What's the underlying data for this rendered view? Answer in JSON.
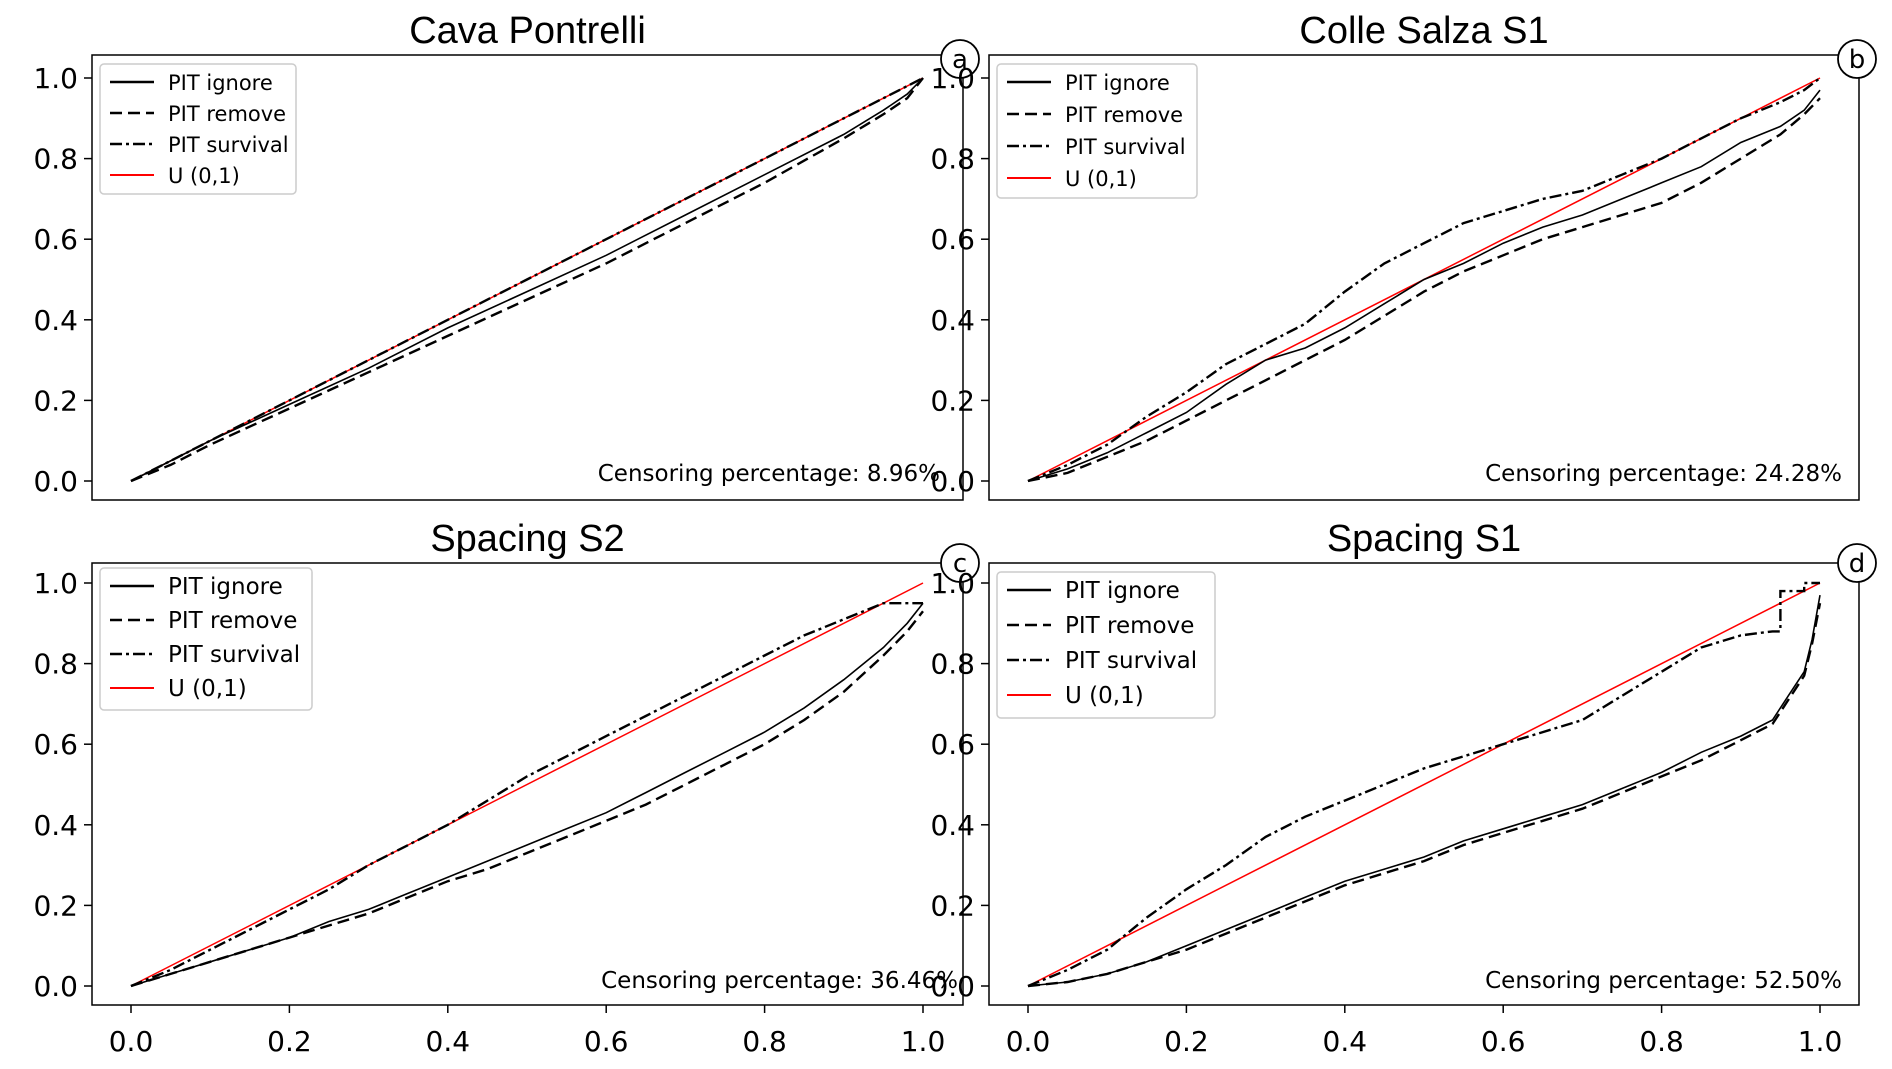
{
  "chart_data": [
    {
      "type": "line",
      "panel": "a",
      "title": "Cava Pontrelli",
      "annotation": "Censoring percentage: 8.96%",
      "xlim": [
        0,
        1
      ],
      "ylim": [
        0,
        1
      ],
      "xticks": [
        "0.0",
        "0.2",
        "0.4",
        "0.6",
        "0.8",
        "1.0"
      ],
      "yticks": [
        "0.0",
        "0.2",
        "0.4",
        "0.6",
        "0.8",
        "1.0"
      ],
      "legend_position": "top-left",
      "series": [
        {
          "name": "PIT ignore",
          "style": "solid",
          "color": "#000000",
          "x": [
            0,
            0.05,
            0.1,
            0.2,
            0.3,
            0.4,
            0.5,
            0.6,
            0.7,
            0.8,
            0.9,
            0.95,
            0.98,
            1.0
          ],
          "y": [
            0,
            0.05,
            0.1,
            0.19,
            0.28,
            0.38,
            0.47,
            0.56,
            0.66,
            0.76,
            0.86,
            0.92,
            0.96,
            1.0
          ]
        },
        {
          "name": "PIT remove",
          "style": "dashed",
          "color": "#000000",
          "x": [
            0,
            0.05,
            0.1,
            0.2,
            0.3,
            0.4,
            0.5,
            0.6,
            0.7,
            0.8,
            0.9,
            0.95,
            0.98,
            1.0
          ],
          "y": [
            0,
            0.04,
            0.09,
            0.18,
            0.27,
            0.36,
            0.45,
            0.54,
            0.64,
            0.74,
            0.85,
            0.91,
            0.95,
            1.0
          ]
        },
        {
          "name": "PIT survival",
          "style": "dashdot",
          "color": "#000000",
          "x": [
            0,
            0.05,
            0.1,
            0.2,
            0.3,
            0.4,
            0.5,
            0.6,
            0.7,
            0.8,
            0.9,
            0.95,
            1.0
          ],
          "y": [
            0,
            0.05,
            0.1,
            0.2,
            0.3,
            0.4,
            0.5,
            0.6,
            0.7,
            0.8,
            0.9,
            0.95,
            1.0
          ]
        },
        {
          "name": "U (0,1)",
          "style": "solid",
          "color": "#ff0000",
          "x": [
            0,
            1
          ],
          "y": [
            0,
            1
          ]
        }
      ]
    },
    {
      "type": "line",
      "panel": "b",
      "title": "Colle Salza S1",
      "annotation": "Censoring percentage: 24.28%",
      "xlim": [
        0,
        1
      ],
      "ylim": [
        0,
        1
      ],
      "xticks": [
        "0.0",
        "0.2",
        "0.4",
        "0.6",
        "0.8",
        "1.0"
      ],
      "yticks": [
        "0.0",
        "0.2",
        "0.4",
        "0.6",
        "0.8",
        "1.0"
      ],
      "legend_position": "top-left",
      "series": [
        {
          "name": "PIT ignore",
          "style": "solid",
          "color": "#000000",
          "x": [
            0,
            0.05,
            0.1,
            0.15,
            0.2,
            0.25,
            0.3,
            0.35,
            0.4,
            0.45,
            0.5,
            0.55,
            0.6,
            0.65,
            0.7,
            0.75,
            0.8,
            0.85,
            0.9,
            0.95,
            0.98,
            1.0
          ],
          "y": [
            0,
            0.03,
            0.07,
            0.12,
            0.17,
            0.24,
            0.3,
            0.33,
            0.38,
            0.44,
            0.5,
            0.54,
            0.59,
            0.63,
            0.66,
            0.7,
            0.74,
            0.78,
            0.84,
            0.88,
            0.92,
            0.97
          ]
        },
        {
          "name": "PIT remove",
          "style": "dashed",
          "color": "#000000",
          "x": [
            0,
            0.05,
            0.1,
            0.15,
            0.2,
            0.25,
            0.3,
            0.35,
            0.4,
            0.45,
            0.5,
            0.55,
            0.6,
            0.65,
            0.7,
            0.75,
            0.8,
            0.85,
            0.9,
            0.95,
            0.98,
            1.0
          ],
          "y": [
            0,
            0.02,
            0.06,
            0.1,
            0.15,
            0.2,
            0.25,
            0.3,
            0.35,
            0.41,
            0.47,
            0.52,
            0.56,
            0.6,
            0.63,
            0.66,
            0.69,
            0.74,
            0.8,
            0.86,
            0.91,
            0.95
          ]
        },
        {
          "name": "PIT survival",
          "style": "dashdot",
          "color": "#000000",
          "x": [
            0,
            0.05,
            0.1,
            0.15,
            0.2,
            0.25,
            0.3,
            0.35,
            0.4,
            0.45,
            0.5,
            0.55,
            0.6,
            0.65,
            0.7,
            0.75,
            0.8,
            0.85,
            0.9,
            0.95,
            0.98,
            1.0
          ],
          "y": [
            0,
            0.04,
            0.09,
            0.16,
            0.22,
            0.29,
            0.34,
            0.39,
            0.47,
            0.54,
            0.59,
            0.64,
            0.67,
            0.7,
            0.72,
            0.76,
            0.8,
            0.85,
            0.9,
            0.94,
            0.97,
            1.0
          ]
        },
        {
          "name": "U (0,1)",
          "style": "solid",
          "color": "#ff0000",
          "x": [
            0,
            1
          ],
          "y": [
            0,
            1
          ]
        }
      ]
    },
    {
      "type": "line",
      "panel": "c",
      "title": "Spacing S2",
      "annotation": "Censoring percentage: 36.46%",
      "xlim": [
        0,
        1
      ],
      "ylim": [
        0,
        1
      ],
      "xticks": [
        "0.0",
        "0.2",
        "0.4",
        "0.6",
        "0.8",
        "1.0"
      ],
      "yticks": [
        "0.0",
        "0.2",
        "0.4",
        "0.6",
        "0.8",
        "1.0"
      ],
      "legend_position": "top-left",
      "series": [
        {
          "name": "PIT ignore",
          "style": "solid",
          "color": "#000000",
          "x": [
            0,
            0.05,
            0.1,
            0.15,
            0.2,
            0.25,
            0.3,
            0.35,
            0.4,
            0.45,
            0.5,
            0.55,
            0.6,
            0.65,
            0.7,
            0.75,
            0.8,
            0.85,
            0.9,
            0.95,
            0.98,
            1.0
          ],
          "y": [
            0,
            0.03,
            0.06,
            0.09,
            0.12,
            0.16,
            0.19,
            0.23,
            0.27,
            0.31,
            0.35,
            0.39,
            0.43,
            0.48,
            0.53,
            0.58,
            0.63,
            0.69,
            0.76,
            0.84,
            0.9,
            0.95
          ]
        },
        {
          "name": "PIT remove",
          "style": "dashed",
          "color": "#000000",
          "x": [
            0,
            0.05,
            0.1,
            0.15,
            0.2,
            0.25,
            0.3,
            0.35,
            0.4,
            0.45,
            0.5,
            0.55,
            0.6,
            0.65,
            0.7,
            0.75,
            0.8,
            0.85,
            0.9,
            0.95,
            0.98,
            1.0
          ],
          "y": [
            0,
            0.03,
            0.06,
            0.09,
            0.12,
            0.15,
            0.18,
            0.22,
            0.26,
            0.29,
            0.33,
            0.37,
            0.41,
            0.45,
            0.5,
            0.55,
            0.6,
            0.66,
            0.73,
            0.82,
            0.88,
            0.93
          ]
        },
        {
          "name": "PIT survival",
          "style": "dashdot",
          "color": "#000000",
          "x": [
            0,
            0.05,
            0.1,
            0.15,
            0.2,
            0.25,
            0.3,
            0.35,
            0.4,
            0.45,
            0.5,
            0.55,
            0.6,
            0.65,
            0.7,
            0.75,
            0.8,
            0.85,
            0.9,
            0.95,
            1.0
          ],
          "y": [
            0,
            0.04,
            0.09,
            0.14,
            0.19,
            0.24,
            0.3,
            0.35,
            0.4,
            0.46,
            0.52,
            0.57,
            0.62,
            0.67,
            0.72,
            0.77,
            0.82,
            0.87,
            0.91,
            0.95,
            0.95
          ]
        },
        {
          "name": "U (0,1)",
          "style": "solid",
          "color": "#ff0000",
          "x": [
            0,
            1
          ],
          "y": [
            0,
            1
          ]
        }
      ]
    },
    {
      "type": "line",
      "panel": "d",
      "title": "Spacing S1",
      "annotation": "Censoring percentage: 52.50%",
      "xlim": [
        0,
        1
      ],
      "ylim": [
        0,
        1
      ],
      "xticks": [
        "0.0",
        "0.2",
        "0.4",
        "0.6",
        "0.8",
        "1.0"
      ],
      "yticks": [
        "0.0",
        "0.2",
        "0.4",
        "0.6",
        "0.8",
        "1.0"
      ],
      "legend_position": "top-left",
      "series": [
        {
          "name": "PIT ignore",
          "style": "solid",
          "color": "#000000",
          "x": [
            0,
            0.05,
            0.1,
            0.15,
            0.2,
            0.25,
            0.3,
            0.35,
            0.4,
            0.45,
            0.5,
            0.55,
            0.6,
            0.65,
            0.7,
            0.75,
            0.8,
            0.85,
            0.9,
            0.94,
            0.96,
            0.98,
            0.99,
            1.0
          ],
          "y": [
            0,
            0.01,
            0.03,
            0.06,
            0.1,
            0.14,
            0.18,
            0.22,
            0.26,
            0.29,
            0.32,
            0.36,
            0.39,
            0.42,
            0.45,
            0.49,
            0.53,
            0.58,
            0.62,
            0.66,
            0.72,
            0.78,
            0.86,
            0.97
          ]
        },
        {
          "name": "PIT remove",
          "style": "dashed",
          "color": "#000000",
          "x": [
            0,
            0.05,
            0.1,
            0.15,
            0.2,
            0.25,
            0.3,
            0.35,
            0.4,
            0.45,
            0.5,
            0.55,
            0.6,
            0.65,
            0.7,
            0.75,
            0.8,
            0.85,
            0.9,
            0.94,
            0.96,
            0.98,
            0.99,
            1.0
          ],
          "y": [
            0,
            0.01,
            0.03,
            0.06,
            0.09,
            0.13,
            0.17,
            0.21,
            0.25,
            0.28,
            0.31,
            0.35,
            0.38,
            0.41,
            0.44,
            0.48,
            0.52,
            0.56,
            0.61,
            0.65,
            0.71,
            0.77,
            0.85,
            0.95
          ]
        },
        {
          "name": "PIT survival",
          "style": "dashdot",
          "color": "#000000",
          "x": [
            0,
            0.05,
            0.1,
            0.15,
            0.2,
            0.25,
            0.3,
            0.35,
            0.4,
            0.45,
            0.5,
            0.55,
            0.6,
            0.65,
            0.7,
            0.75,
            0.8,
            0.85,
            0.9,
            0.94,
            0.94,
            0.95,
            0.95,
            0.98,
            0.98,
            1.0
          ],
          "y": [
            0,
            0.04,
            0.09,
            0.17,
            0.24,
            0.3,
            0.37,
            0.42,
            0.46,
            0.5,
            0.54,
            0.57,
            0.6,
            0.63,
            0.66,
            0.72,
            0.78,
            0.84,
            0.87,
            0.88,
            0.88,
            0.88,
            0.98,
            0.98,
            1.0,
            1.0
          ]
        },
        {
          "name": "U (0,1)",
          "style": "solid",
          "color": "#ff0000",
          "x": [
            0,
            1
          ],
          "y": [
            0,
            1
          ]
        }
      ]
    }
  ]
}
